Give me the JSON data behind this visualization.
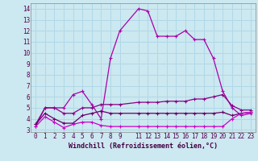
{
  "bg_color": "#cce8f0",
  "grid_color": "#b0d8e8",
  "xlabel": "Windchill (Refroidissement éolien,°C)",
  "xlim": [
    -0.5,
    23.5
  ],
  "ylim": [
    2.8,
    14.5
  ],
  "yticks": [
    3,
    4,
    5,
    6,
    7,
    8,
    9,
    10,
    11,
    12,
    13,
    14
  ],
  "xticks": [
    0,
    1,
    2,
    3,
    4,
    5,
    6,
    7,
    8,
    9,
    11,
    12,
    13,
    14,
    15,
    16,
    17,
    18,
    19,
    20,
    21,
    22,
    23
  ],
  "tick_fontsize": 5.5,
  "xlabel_fontsize": 6.0,
  "line1_x": [
    0,
    1,
    2,
    3,
    4,
    5,
    6,
    7,
    8,
    9,
    11,
    12,
    13,
    14,
    15,
    16,
    17,
    18,
    19,
    20,
    21,
    22,
    23
  ],
  "line1_y": [
    3.3,
    5.0,
    5.0,
    5.0,
    6.2,
    6.5,
    5.3,
    4.0,
    9.5,
    12.0,
    14.0,
    13.8,
    11.5,
    11.5,
    11.5,
    12.0,
    11.2,
    11.2,
    9.5,
    6.5,
    5.0,
    4.3,
    4.5
  ],
  "line1_color": "#aa00aa",
  "line2_x": [
    0,
    1,
    2,
    3,
    4,
    5,
    6,
    7,
    8,
    9,
    11,
    12,
    13,
    14,
    15,
    16,
    17,
    18,
    19,
    20,
    21,
    22,
    23
  ],
  "line2_y": [
    3.5,
    5.0,
    5.0,
    4.5,
    4.5,
    5.0,
    5.0,
    5.3,
    5.3,
    5.3,
    5.5,
    5.5,
    5.5,
    5.6,
    5.6,
    5.6,
    5.8,
    5.8,
    6.0,
    6.2,
    5.2,
    4.8,
    4.8
  ],
  "line2_color": "#880088",
  "line3_x": [
    0,
    1,
    2,
    3,
    4,
    5,
    6,
    7,
    8,
    9,
    11,
    12,
    13,
    14,
    15,
    16,
    17,
    18,
    19,
    20,
    21,
    22,
    23
  ],
  "line3_y": [
    3.5,
    4.5,
    4.0,
    3.6,
    3.6,
    4.3,
    4.5,
    4.7,
    4.5,
    4.5,
    4.5,
    4.5,
    4.5,
    4.5,
    4.5,
    4.5,
    4.5,
    4.5,
    4.5,
    4.6,
    4.3,
    4.5,
    4.6
  ],
  "line3_color": "#660066",
  "line4_x": [
    0,
    1,
    2,
    3,
    4,
    5,
    6,
    7,
    8,
    9,
    11,
    12,
    13,
    14,
    15,
    16,
    17,
    18,
    19,
    20,
    21,
    22,
    23
  ],
  "line4_y": [
    3.3,
    4.2,
    3.7,
    3.2,
    3.5,
    3.7,
    3.7,
    3.4,
    3.3,
    3.3,
    3.3,
    3.3,
    3.3,
    3.3,
    3.3,
    3.3,
    3.3,
    3.3,
    3.3,
    3.3,
    4.0,
    4.5,
    4.6
  ],
  "line4_color": "#cc00cc"
}
